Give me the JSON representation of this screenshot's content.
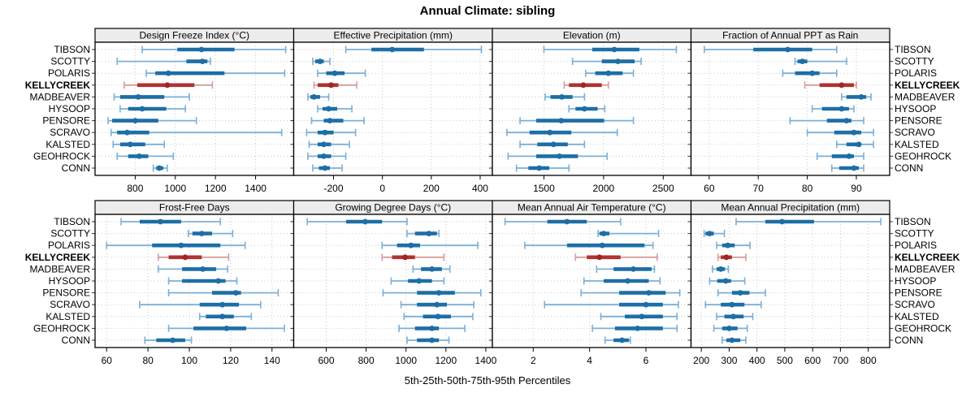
{
  "title": "Annual Climate: sibling",
  "caption": "5th-25th-50th-75th-95th Percentiles",
  "sites": [
    "TIBSON",
    "SCOTTY",
    "POLARIS",
    "KELLYCREEK",
    "MADBEAVER",
    "HYSOOP",
    "PENSORE",
    "SCRAVO",
    "KALSTED",
    "GEOHROCK",
    "CONN"
  ],
  "highlight_site": "KELLYCREEK",
  "colors": {
    "blue_whisker": "#7bafd6",
    "blue_bar": "#1d6ea6",
    "blue_dot": "#1d6ea6",
    "red_whisker": "#d89b9b",
    "red_bar": "#b03232",
    "red_dot": "#a22424",
    "strip_bg": "#ececec",
    "grid": "#c8c8c8",
    "border": "#000000"
  },
  "chart_data": [
    {
      "type": "dot-interval",
      "id": "design-freeze-index",
      "title": "Design Freeze Index (°C)",
      "xlim": [
        600,
        1590
      ],
      "ticks": [
        800,
        1000,
        1200,
        1400
      ],
      "percentiles": [
        "5th",
        "25th",
        "50th",
        "75th",
        "95th"
      ],
      "values": {
        "TIBSON": [
          835,
          1010,
          1130,
          1295,
          1550
        ],
        "SCOTTY": [
          710,
          1055,
          1135,
          1160,
          1175
        ],
        "POLARIS": [
          855,
          900,
          965,
          1245,
          1545
        ],
        "KELLYCREEK": [
          745,
          810,
          960,
          1095,
          1185
        ],
        "MADBEAVER": [
          695,
          725,
          815,
          945,
          1070
        ],
        "HYSOOP": [
          725,
          765,
          835,
          955,
          1050
        ],
        "PENSORE": [
          665,
          685,
          800,
          915,
          1105
        ],
        "SCRAVO": [
          680,
          710,
          760,
          870,
          1530
        ],
        "KALSTED": [
          690,
          725,
          775,
          850,
          945
        ],
        "GEOHROCK": [
          710,
          765,
          820,
          865,
          990
        ],
        "CONN": [
          890,
          905,
          920,
          940,
          960
        ]
      }
    },
    {
      "type": "dot-interval",
      "id": "effective-precipitation",
      "title": "Effective Precipitation (mm)",
      "xlim": [
        -363,
        450
      ],
      "ticks": [
        -200,
        0,
        200,
        400
      ],
      "percentiles": [
        "5th",
        "25th",
        "50th",
        "75th",
        "95th"
      ],
      "values": {
        "TIBSON": [
          -150,
          -45,
          40,
          170,
          405
        ],
        "SCOTTY": [
          -285,
          -275,
          -255,
          -240,
          -215
        ],
        "POLARIS": [
          -265,
          -230,
          -195,
          -155,
          -70
        ],
        "KELLYCREEK": [
          -280,
          -265,
          -210,
          -180,
          -105
        ],
        "MADBEAVER": [
          -305,
          -295,
          -280,
          -255,
          -220
        ],
        "HYSOOP": [
          -265,
          -245,
          -220,
          -185,
          -125
        ],
        "PENSORE": [
          -290,
          -240,
          -215,
          -160,
          -75
        ],
        "SCRAVO": [
          -310,
          -265,
          -235,
          -200,
          -110
        ],
        "KALSTED": [
          -300,
          -265,
          -240,
          -210,
          -135
        ],
        "GEOHROCK": [
          -305,
          -265,
          -240,
          -210,
          -150
        ],
        "CONN": [
          -285,
          -260,
          -235,
          -215,
          -165
        ]
      }
    },
    {
      "type": "dot-interval",
      "id": "elevation",
      "title": "Elevation (m)",
      "xlim": [
        1068,
        2733
      ],
      "ticks": [
        1500,
        2000,
        2500
      ],
      "percentiles": [
        "5th",
        "25th",
        "50th",
        "75th",
        "95th"
      ],
      "values": {
        "TIBSON": [
          1500,
          1905,
          2090,
          2300,
          2610
        ],
        "SCOTTY": [
          1740,
          1985,
          2120,
          2260,
          2315
        ],
        "POLARIS": [
          1850,
          1930,
          2040,
          2160,
          2250
        ],
        "KELLYCREEK": [
          1670,
          1710,
          1830,
          1985,
          2040
        ],
        "MADBEAVER": [
          1510,
          1555,
          1650,
          1740,
          1840
        ],
        "HYSOOP": [
          1710,
          1765,
          1840,
          1950,
          2010
        ],
        "PENSORE": [
          1300,
          1435,
          1645,
          2005,
          2250
        ],
        "SCRAVO": [
          1190,
          1380,
          1550,
          1730,
          2115
        ],
        "KALSTED": [
          1300,
          1445,
          1580,
          1700,
          1840
        ],
        "GEOHROCK": [
          1200,
          1435,
          1630,
          1785,
          2030
        ],
        "CONN": [
          1270,
          1370,
          1460,
          1545,
          1710
        ]
      }
    },
    {
      "type": "dot-interval",
      "id": "fraction-ppt-rain",
      "title": "Fraction of Annual PPT as Rain",
      "xlim": [
        56.3,
        96.8
      ],
      "ticks": [
        60,
        70,
        80,
        90
      ],
      "percentiles": [
        "5th",
        "25th",
        "50th",
        "75th",
        "95th"
      ],
      "values": {
        "TIBSON": [
          59,
          69,
          76,
          81,
          86
        ],
        "SCOTTY": [
          77.5,
          78,
          79,
          80,
          88
        ],
        "POLARIS": [
          75,
          77.5,
          81,
          82.5,
          86
        ],
        "KELLYCREEK": [
          79.5,
          82.5,
          87,
          89.5,
          90
        ],
        "MADBEAVER": [
          87,
          88,
          91,
          92,
          93
        ],
        "HYSOOP": [
          81,
          83,
          87,
          88.5,
          89.5
        ],
        "PENSORE": [
          76.5,
          84,
          88,
          89,
          91.5
        ],
        "SCRAVO": [
          80,
          85.5,
          89.5,
          91,
          93.5
        ],
        "KALSTED": [
          86,
          88,
          90.5,
          91,
          93.5
        ],
        "GEOHROCK": [
          82,
          85,
          88.5,
          89.5,
          91.5
        ],
        "CONN": [
          85,
          86.5,
          89.5,
          90.5,
          91.5
        ]
      }
    },
    {
      "type": "dot-interval",
      "id": "frost-free-days",
      "title": "Frost-Free Days",
      "xlim": [
        54.4,
        150.5
      ],
      "ticks": [
        60,
        80,
        100,
        120,
        140
      ],
      "percentiles": [
        "5th",
        "25th",
        "50th",
        "75th",
        "95th"
      ],
      "values": {
        "TIBSON": [
          67,
          76,
          86,
          96,
          115
        ],
        "SCOTTY": [
          99.5,
          101.5,
          106,
          111,
          121
        ],
        "POLARIS": [
          60,
          82,
          96,
          115,
          127
        ],
        "KELLYCREEK": [
          85,
          90,
          98,
          106,
          119
        ],
        "MADBEAVER": [
          85,
          96.5,
          106.5,
          113,
          118.5
        ],
        "HYSOOP": [
          90,
          96.5,
          114,
          117.5,
          123
        ],
        "PENSORE": [
          90,
          111,
          122.5,
          125,
          143
        ],
        "SCRAVO": [
          76,
          105,
          116,
          124,
          134.5
        ],
        "KALSTED": [
          105,
          108,
          116,
          121.5,
          130
        ],
        "GEOHROCK": [
          90,
          102,
          118,
          127.5,
          146
        ],
        "CONN": [
          78.5,
          84,
          92,
          98,
          101
        ]
      }
    },
    {
      "type": "dot-interval",
      "id": "growing-degree-days",
      "title": "Growing Degree Days (°C)",
      "xlim": [
        437,
        1433
      ],
      "ticks": [
        600,
        800,
        1000,
        1200,
        1400
      ],
      "percentiles": [
        "5th",
        "25th",
        "50th",
        "75th",
        "95th"
      ],
      "values": {
        "TIBSON": [
          505,
          700,
          795,
          880,
          1005
        ],
        "SCOTTY": [
          1005,
          1045,
          1115,
          1155,
          1165
        ],
        "POLARIS": [
          880,
          955,
          1025,
          1070,
          1360
        ],
        "KELLYCREEK": [
          880,
          930,
          995,
          1045,
          1190
        ],
        "MADBEAVER": [
          1035,
          1075,
          1130,
          1180,
          1220
        ],
        "HYSOOP": [
          925,
          1010,
          1065,
          1130,
          1190
        ],
        "PENSORE": [
          885,
          1055,
          1165,
          1245,
          1375
        ],
        "SCRAVO": [
          975,
          1055,
          1155,
          1205,
          1340
        ],
        "KALSTED": [
          990,
          1085,
          1160,
          1225,
          1335
        ],
        "GEOHROCK": [
          965,
          1045,
          1130,
          1165,
          1295
        ],
        "CONN": [
          1005,
          1055,
          1130,
          1165,
          1215
        ]
      }
    },
    {
      "type": "dot-interval",
      "id": "mean-annual-air-temperature",
      "title": "Mean Annual Air Temperature (°C)",
      "xlim": [
        0.55,
        7.6
      ],
      "ticks": [
        2,
        4,
        6
      ],
      "percentiles": [
        "5th",
        "25th",
        "50th",
        "75th",
        "95th"
      ],
      "values": {
        "TIBSON": [
          1.0,
          2.5,
          3.2,
          3.9,
          5.1
        ],
        "SCOTTY": [
          4.3,
          4.35,
          4.5,
          4.7,
          6.45
        ],
        "POLARIS": [
          1.7,
          3.2,
          4.45,
          5.95,
          6.25
        ],
        "KELLYCREEK": [
          3.5,
          3.9,
          4.35,
          5.1,
          6.4
        ],
        "MADBEAVER": [
          4.25,
          4.85,
          5.55,
          6.2,
          6.3
        ],
        "HYSOOP": [
          3.8,
          4.5,
          5.35,
          6.1,
          6.5
        ],
        "PENSORE": [
          3.7,
          5.05,
          6.1,
          6.7,
          7.2
        ],
        "SCRAVO": [
          2.4,
          5.05,
          6.0,
          6.6,
          7.15
        ],
        "KALSTED": [
          4.4,
          5.25,
          5.85,
          6.6,
          7.1
        ],
        "GEOHROCK": [
          4.1,
          4.9,
          5.7,
          6.6,
          7.1
        ],
        "CONN": [
          4.55,
          4.85,
          5.15,
          5.4,
          5.45
        ]
      }
    },
    {
      "type": "dot-interval",
      "id": "mean-annual-precipitation",
      "title": "Mean Annual Precipitation (mm)",
      "xlim": [
        163,
        877
      ],
      "ticks": [
        200,
        300,
        400,
        500,
        600,
        700,
        800
      ],
      "percentiles": [
        "5th",
        "25th",
        "50th",
        "75th",
        "95th"
      ],
      "values": {
        "TIBSON": [
          325,
          430,
          490,
          605,
          845
        ],
        "SCOTTY": [
          210,
          215,
          230,
          245,
          283
        ],
        "POLARIS": [
          255,
          275,
          295,
          320,
          375
        ],
        "KELLYCREEK": [
          260,
          270,
          290,
          310,
          360
        ],
        "MADBEAVER": [
          240,
          255,
          270,
          285,
          297
        ],
        "HYSOOP": [
          230,
          257,
          288,
          307,
          356
        ],
        "PENSORE": [
          260,
          310,
          340,
          373,
          430
        ],
        "SCRAVO": [
          215,
          270,
          310,
          355,
          415
        ],
        "KALSTED": [
          255,
          283,
          315,
          352,
          385
        ],
        "GEOHROCK": [
          245,
          275,
          300,
          330,
          365
        ],
        "CONN": [
          275,
          290,
          310,
          340,
          360
        ]
      }
    }
  ]
}
